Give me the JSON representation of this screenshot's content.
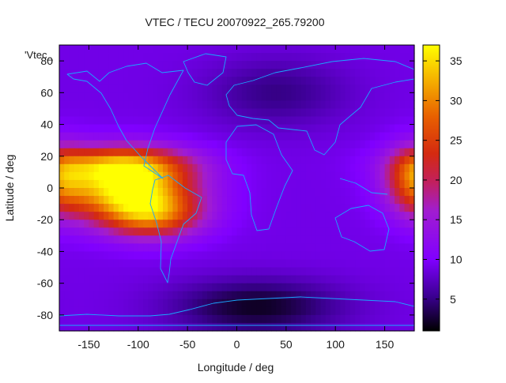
{
  "chart_data": {
    "type": "heatmap",
    "title": "VTEC / TECU 20070922_265.79200",
    "xlabel": "Longitude / deg",
    "ylabel": "Latitude / deg",
    "key_label": "'Vtec_",
    "xlim": [
      -180,
      180
    ],
    "ylim": [
      -90,
      90
    ],
    "xticks": [
      -150,
      -100,
      -50,
      0,
      50,
      100,
      150
    ],
    "yticks": [
      -80,
      -60,
      -40,
      -20,
      0,
      20,
      40,
      60,
      80
    ],
    "colorbar": {
      "min": 1,
      "max": 37,
      "ticks": [
        5,
        10,
        15,
        20,
        25,
        30,
        35
      ]
    },
    "background_level": 9,
    "features": [
      {
        "name": "equatorial-anomaly-pacific",
        "lon": -110,
        "lat": 0,
        "peak": 36,
        "spread_lon": 45,
        "spread_lat": 14
      },
      {
        "name": "crest-north-pacific",
        "lon": -120,
        "lat": 15,
        "peak": 22,
        "spread_lon": 50,
        "spread_lat": 8
      },
      {
        "name": "crest-south-america",
        "lon": -85,
        "lat": -18,
        "peak": 24,
        "spread_lon": 35,
        "spread_lat": 10
      },
      {
        "name": "eastern-edge-anomaly",
        "lon": 180,
        "lat": 5,
        "peak": 22,
        "spread_lon": 20,
        "spread_lat": 15
      },
      {
        "name": "southern-polar-minimum",
        "lon": 20,
        "lat": -75,
        "peak": 2,
        "spread_lon": 60,
        "spread_lat": 12
      },
      {
        "name": "northern-midlatitude-low",
        "lon": 40,
        "lat": 60,
        "peak": 5,
        "spread_lon": 50,
        "spread_lat": 15
      }
    ]
  }
}
